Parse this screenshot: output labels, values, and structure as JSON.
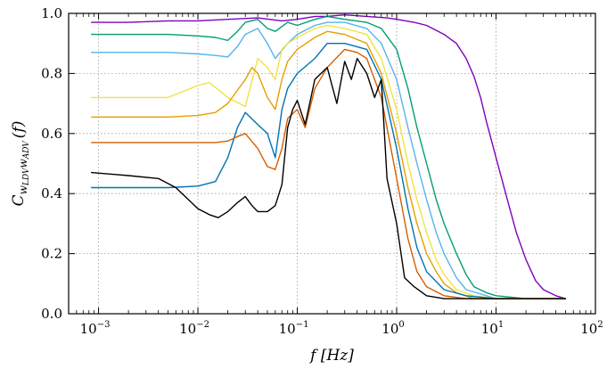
{
  "chart_data": {
    "type": "line",
    "xscale": "log",
    "xlim": [
      0.0005,
      100
    ],
    "ylim": [
      0.0,
      1.0
    ],
    "grid": true,
    "legend": "none",
    "xlabel": "f [Hz]",
    "ylabel_main": "C",
    "ylabel_sub": "w",
    "ylabel_subsub1": "LDV",
    "ylabel_mid": "w",
    "ylabel_subsub2": "ADV",
    "ylabel_tail": "(f)",
    "x_ticks": [
      {
        "base": "10",
        "exp": "−3",
        "value": 0.001
      },
      {
        "base": "10",
        "exp": "−2",
        "value": 0.01
      },
      {
        "base": "10",
        "exp": "−1",
        "value": 0.1
      },
      {
        "base": "10",
        "exp": "0",
        "value": 1
      },
      {
        "base": "10",
        "exp": "1",
        "value": 10
      },
      {
        "base": "10",
        "exp": "2",
        "value": 100
      }
    ],
    "y_ticks": [
      {
        "label": "0.0",
        "value": 0.0
      },
      {
        "label": "0.2",
        "value": 0.2
      },
      {
        "label": "0.4",
        "value": 0.4
      },
      {
        "label": "0.6",
        "value": 0.6
      },
      {
        "label": "0.8",
        "value": 0.8
      },
      {
        "label": "1.0",
        "value": 1.0
      }
    ],
    "series": [
      {
        "color": "#7f00bf",
        "x": [
          0.00085,
          0.002,
          0.005,
          0.01,
          0.02,
          0.04,
          0.07,
          0.1,
          0.15,
          0.2,
          0.3,
          0.5,
          0.8,
          1.0,
          1.5,
          2.0,
          3.0,
          4.0,
          5.0,
          6.0,
          7.0,
          8.0,
          10.0,
          13.0,
          16.0,
          20.0,
          25.0,
          30.0,
          40.0,
          50.0
        ],
        "y": [
          0.97,
          0.97,
          0.975,
          0.975,
          0.98,
          0.985,
          0.975,
          0.98,
          0.99,
          0.99,
          0.995,
          0.99,
          0.985,
          0.98,
          0.97,
          0.96,
          0.93,
          0.9,
          0.85,
          0.79,
          0.72,
          0.64,
          0.52,
          0.38,
          0.27,
          0.18,
          0.11,
          0.08,
          0.06,
          0.05
        ]
      },
      {
        "color": "#009e73",
        "x": [
          0.00085,
          0.005,
          0.01,
          0.015,
          0.02,
          0.025,
          0.03,
          0.04,
          0.05,
          0.06,
          0.08,
          0.1,
          0.15,
          0.2,
          0.3,
          0.5,
          0.7,
          1.0,
          1.3,
          1.6,
          2.0,
          2.5,
          3.0,
          4.0,
          5.0,
          6.0,
          8.0,
          10.0,
          20.0,
          50.0
        ],
        "y": [
          0.93,
          0.93,
          0.925,
          0.92,
          0.91,
          0.94,
          0.97,
          0.98,
          0.95,
          0.94,
          0.97,
          0.96,
          0.98,
          0.99,
          0.98,
          0.97,
          0.95,
          0.88,
          0.75,
          0.62,
          0.5,
          0.38,
          0.3,
          0.2,
          0.13,
          0.09,
          0.07,
          0.06,
          0.05,
          0.05
        ]
      },
      {
        "color": "#56b4e9",
        "x": [
          0.00085,
          0.005,
          0.01,
          0.015,
          0.02,
          0.025,
          0.03,
          0.04,
          0.05,
          0.06,
          0.08,
          0.1,
          0.15,
          0.2,
          0.3,
          0.5,
          0.7,
          1.0,
          1.3,
          1.6,
          2.0,
          2.5,
          3.0,
          4.0,
          5.0,
          8.0,
          10.0,
          20.0,
          50.0
        ],
        "y": [
          0.87,
          0.87,
          0.865,
          0.86,
          0.855,
          0.89,
          0.93,
          0.95,
          0.9,
          0.85,
          0.9,
          0.93,
          0.96,
          0.97,
          0.97,
          0.95,
          0.9,
          0.78,
          0.62,
          0.5,
          0.38,
          0.27,
          0.2,
          0.12,
          0.08,
          0.06,
          0.05,
          0.05,
          0.05
        ]
      },
      {
        "color": "#f0e442",
        "x": [
          0.00085,
          0.005,
          0.01,
          0.013,
          0.02,
          0.03,
          0.04,
          0.05,
          0.06,
          0.07,
          0.08,
          0.1,
          0.15,
          0.2,
          0.3,
          0.5,
          0.7,
          1.0,
          1.3,
          1.6,
          2.0,
          2.5,
          3.0,
          4.0,
          6.0,
          10.0,
          20.0,
          50.0
        ],
        "y": [
          0.72,
          0.72,
          0.76,
          0.77,
          0.72,
          0.69,
          0.85,
          0.82,
          0.78,
          0.88,
          0.9,
          0.92,
          0.95,
          0.96,
          0.95,
          0.93,
          0.85,
          0.68,
          0.5,
          0.38,
          0.27,
          0.18,
          0.13,
          0.08,
          0.06,
          0.05,
          0.05,
          0.05
        ]
      },
      {
        "color": "#e69f00",
        "x": [
          0.00085,
          0.005,
          0.01,
          0.015,
          0.02,
          0.03,
          0.035,
          0.04,
          0.05,
          0.06,
          0.07,
          0.08,
          0.1,
          0.15,
          0.2,
          0.3,
          0.5,
          0.7,
          1.0,
          1.3,
          1.6,
          2.0,
          2.5,
          3.0,
          4.0,
          6.0,
          10.0,
          20.0,
          50.0
        ],
        "y": [
          0.655,
          0.655,
          0.66,
          0.67,
          0.7,
          0.78,
          0.82,
          0.8,
          0.72,
          0.68,
          0.78,
          0.84,
          0.88,
          0.92,
          0.94,
          0.93,
          0.9,
          0.8,
          0.6,
          0.42,
          0.3,
          0.2,
          0.14,
          0.1,
          0.07,
          0.05,
          0.05,
          0.05,
          0.05
        ]
      },
      {
        "color": "#0072b2",
        "x": [
          0.00085,
          0.002,
          0.005,
          0.01,
          0.015,
          0.02,
          0.025,
          0.03,
          0.04,
          0.05,
          0.06,
          0.07,
          0.08,
          0.1,
          0.15,
          0.2,
          0.3,
          0.5,
          0.7,
          1.0,
          1.3,
          1.6,
          2.0,
          3.0,
          5.0,
          10.0,
          20.0,
          50.0
        ],
        "y": [
          0.42,
          0.42,
          0.42,
          0.425,
          0.44,
          0.52,
          0.62,
          0.67,
          0.63,
          0.6,
          0.52,
          0.68,
          0.75,
          0.8,
          0.85,
          0.9,
          0.9,
          0.88,
          0.78,
          0.55,
          0.35,
          0.22,
          0.14,
          0.08,
          0.06,
          0.05,
          0.05,
          0.05
        ]
      },
      {
        "color": "#d55e00",
        "x": [
          0.00085,
          0.005,
          0.01,
          0.015,
          0.02,
          0.025,
          0.03,
          0.04,
          0.05,
          0.06,
          0.07,
          0.08,
          0.1,
          0.12,
          0.15,
          0.2,
          0.3,
          0.4,
          0.5,
          0.7,
          1.0,
          1.3,
          1.6,
          2.0,
          3.0,
          5.0,
          10.0,
          20.0,
          50.0
        ],
        "y": [
          0.57,
          0.57,
          0.57,
          0.57,
          0.575,
          0.59,
          0.6,
          0.55,
          0.49,
          0.48,
          0.55,
          0.65,
          0.68,
          0.62,
          0.75,
          0.82,
          0.88,
          0.87,
          0.85,
          0.72,
          0.45,
          0.25,
          0.14,
          0.09,
          0.06,
          0.05,
          0.05,
          0.05,
          0.05
        ]
      },
      {
        "color": "#000000",
        "x": [
          0.00085,
          0.002,
          0.004,
          0.006,
          0.01,
          0.013,
          0.016,
          0.02,
          0.025,
          0.03,
          0.035,
          0.04,
          0.05,
          0.06,
          0.07,
          0.08,
          0.09,
          0.1,
          0.12,
          0.15,
          0.2,
          0.25,
          0.3,
          0.35,
          0.4,
          0.5,
          0.6,
          0.7,
          0.8,
          1.0,
          1.2,
          1.5,
          2.0,
          3.0,
          5.0,
          10.0,
          20.0,
          50.0
        ],
        "y": [
          0.47,
          0.46,
          0.45,
          0.42,
          0.35,
          0.33,
          0.32,
          0.34,
          0.37,
          0.39,
          0.36,
          0.34,
          0.34,
          0.36,
          0.43,
          0.62,
          0.68,
          0.71,
          0.63,
          0.78,
          0.82,
          0.7,
          0.84,
          0.78,
          0.85,
          0.8,
          0.72,
          0.78,
          0.45,
          0.3,
          0.12,
          0.09,
          0.06,
          0.05,
          0.05,
          0.05,
          0.05,
          0.05
        ]
      }
    ]
  }
}
